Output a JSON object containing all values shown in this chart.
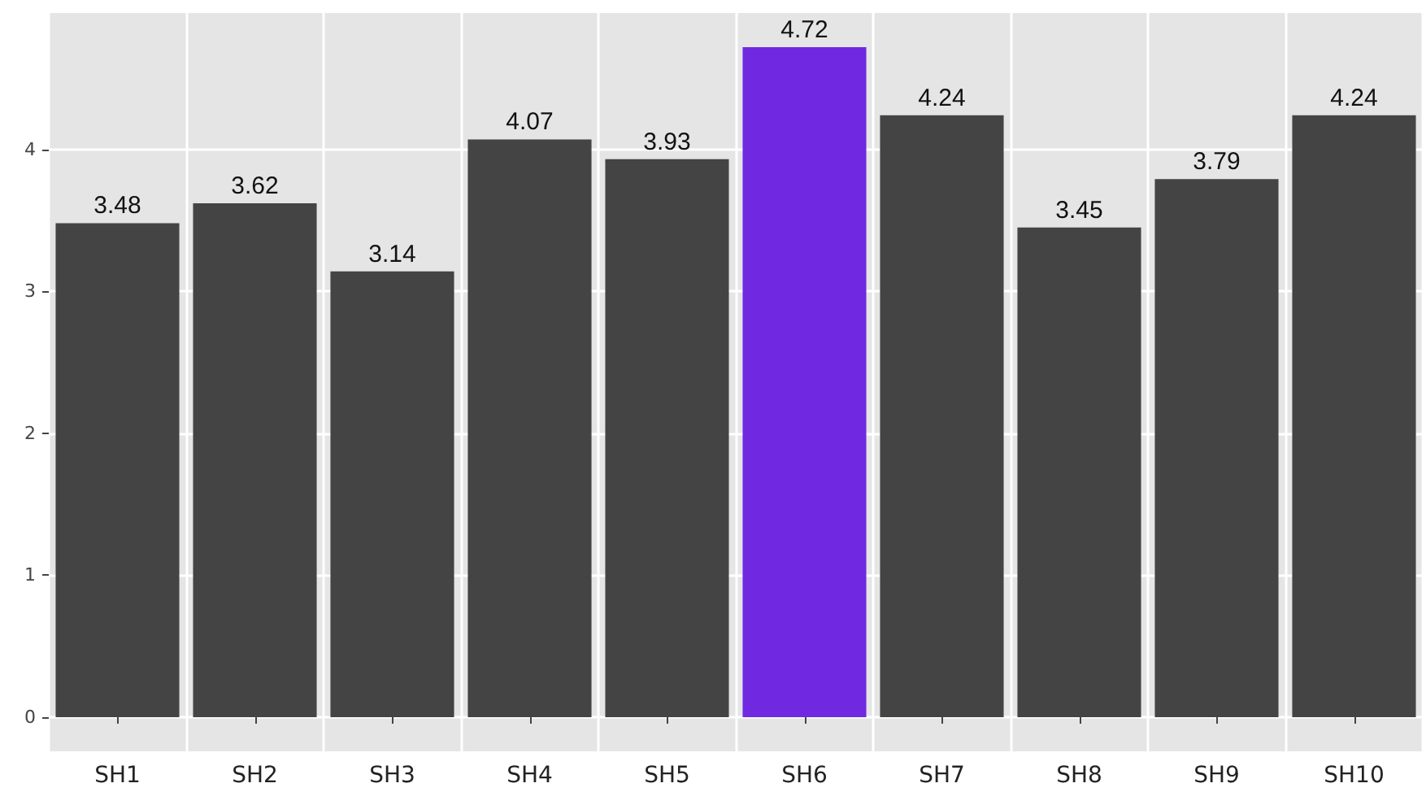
{
  "chart_data": {
    "type": "bar",
    "categories": [
      "SH1",
      "SH2",
      "SH3",
      "SH4",
      "SH5",
      "SH6",
      "SH7",
      "SH8",
      "SH9",
      "SH10"
    ],
    "values": [
      3.48,
      3.62,
      3.14,
      4.07,
      3.93,
      4.72,
      4.24,
      3.45,
      3.79,
      4.24
    ],
    "colors": [
      "#444444",
      "#444444",
      "#444444",
      "#444444",
      "#444444",
      "#7028e0",
      "#444444",
      "#444444",
      "#444444",
      "#444444"
    ],
    "ylim": [
      -0.24,
      4.96
    ],
    "yticks": [
      0,
      1,
      2,
      3,
      4
    ],
    "grid": true,
    "data_labels": true
  }
}
